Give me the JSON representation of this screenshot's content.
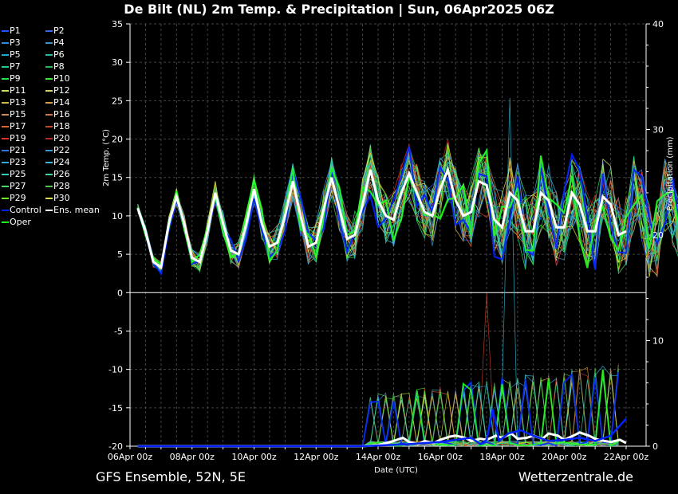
{
  "title": "De Bilt  (NL)  2m Temp. & Precipitation | Sun, 06Apr2025 06Z",
  "footer_left": "GFS Ensemble, 52N, 5E",
  "footer_right": "Wetterzentrale.de",
  "chart_data": {
    "type": "line",
    "title": "De Bilt  (NL)  2m Temp. & Precipitation | Sun, 06Apr2025 06Z",
    "xlabel": "Date (UTC)",
    "ylabel": "2m Temp. (°C)",
    "y2label": "Precipitation (mm)",
    "ylim": [
      -20,
      35
    ],
    "y2lim": [
      0,
      40
    ],
    "xlim_days": [
      0,
      16
    ],
    "yticks": [
      "35",
      "30",
      "25",
      "20",
      "15",
      "10",
      "5",
      "0",
      "-5",
      "-10",
      "-15",
      "-20"
    ],
    "y2ticks": [
      "40",
      "30",
      "20",
      "10",
      "0"
    ],
    "xticks": [
      "06Apr 00z",
      "08Apr 00z",
      "10Apr 00z",
      "12Apr 00z",
      "14Apr 00z",
      "16Apr 00z",
      "18Apr 00z",
      "20Apr 00z",
      "22Apr 00z"
    ],
    "grid": true,
    "legend_position": "left",
    "legend": [
      {
        "name": "P1",
        "color": "#2255ff"
      },
      {
        "name": "P2",
        "color": "#3366ff"
      },
      {
        "name": "P3",
        "color": "#3388dd"
      },
      {
        "name": "P4",
        "color": "#3399cc"
      },
      {
        "name": "P5",
        "color": "#22aacc"
      },
      {
        "name": "P6",
        "color": "#22bbaa"
      },
      {
        "name": "P7",
        "color": "#22cc99"
      },
      {
        "name": "P8",
        "color": "#22bb55"
      },
      {
        "name": "P9",
        "color": "#22dd55"
      },
      {
        "name": "P10",
        "color": "#33ee33"
      },
      {
        "name": "P11",
        "color": "#ccdd66"
      },
      {
        "name": "P12",
        "color": "#ddcc55"
      },
      {
        "name": "P13",
        "color": "#ccbb44"
      },
      {
        "name": "P14",
        "color": "#dd9944"
      },
      {
        "name": "P15",
        "color": "#cc8855"
      },
      {
        "name": "P16",
        "color": "#cc7744"
      },
      {
        "name": "P17",
        "color": "#dd6633"
      },
      {
        "name": "P18",
        "color": "#cc4422"
      },
      {
        "name": "P19",
        "color": "#dd3322"
      },
      {
        "name": "P20",
        "color": "#bb2222"
      },
      {
        "name": "P21",
        "color": "#3377dd"
      },
      {
        "name": "P22",
        "color": "#3399dd"
      },
      {
        "name": "P23",
        "color": "#33aadd"
      },
      {
        "name": "P24",
        "color": "#33bbdd"
      },
      {
        "name": "P25",
        "color": "#33ccbb"
      },
      {
        "name": "P26",
        "color": "#33dd99"
      },
      {
        "name": "P27",
        "color": "#44dd66"
      },
      {
        "name": "P28",
        "color": "#44cc44"
      },
      {
        "name": "P29",
        "color": "#66ee22"
      },
      {
        "name": "P30",
        "color": "#dddd33"
      },
      {
        "name": "Control",
        "color": "#0022ff"
      },
      {
        "name": "Ens. mean",
        "color": "#ffffff"
      },
      {
        "name": "Oper",
        "color": "#22ff22"
      }
    ],
    "temp_mean": [
      [
        0.25,
        11
      ],
      [
        0.5,
        8
      ],
      [
        0.75,
        4
      ],
      [
        1.0,
        3.3
      ],
      [
        1.25,
        9
      ],
      [
        1.5,
        12.5
      ],
      [
        1.75,
        9
      ],
      [
        2.0,
        4.5
      ],
      [
        2.25,
        4
      ],
      [
        2.5,
        8
      ],
      [
        2.75,
        13
      ],
      [
        3.0,
        9
      ],
      [
        3.25,
        5.5
      ],
      [
        3.5,
        5
      ],
      [
        3.75,
        9
      ],
      [
        4.0,
        13.5
      ],
      [
        4.25,
        9
      ],
      [
        4.5,
        6
      ],
      [
        4.75,
        6.5
      ],
      [
        5.0,
        10
      ],
      [
        5.25,
        14.5
      ],
      [
        5.5,
        10
      ],
      [
        5.75,
        6
      ],
      [
        6.0,
        6.5
      ],
      [
        6.25,
        11
      ],
      [
        6.5,
        15
      ],
      [
        6.75,
        11
      ],
      [
        7.0,
        7
      ],
      [
        7.25,
        7.5
      ],
      [
        7.5,
        11.5
      ],
      [
        7.75,
        16
      ],
      [
        8.0,
        12
      ],
      [
        8.25,
        10
      ],
      [
        8.5,
        9.5
      ],
      [
        8.75,
        13
      ],
      [
        9.0,
        15.5
      ],
      [
        9.25,
        13
      ],
      [
        9.5,
        10.5
      ],
      [
        9.75,
        10
      ],
      [
        10.0,
        13.5
      ],
      [
        10.25,
        16
      ],
      [
        10.5,
        12
      ],
      [
        10.75,
        10
      ],
      [
        11.0,
        10.5
      ],
      [
        11.25,
        14.5
      ],
      [
        11.5,
        14
      ],
      [
        11.75,
        9.5
      ],
      [
        12.0,
        8.5
      ],
      [
        12.25,
        13
      ],
      [
        12.5,
        12
      ],
      [
        12.75,
        8
      ],
      [
        13.0,
        8
      ],
      [
        13.25,
        13
      ],
      [
        13.5,
        12
      ],
      [
        13.75,
        8.5
      ],
      [
        14.0,
        8.5
      ],
      [
        14.25,
        13
      ],
      [
        14.5,
        11.5
      ],
      [
        14.75,
        8
      ],
      [
        15.0,
        8
      ],
      [
        15.25,
        12.5
      ],
      [
        15.5,
        11.5
      ],
      [
        15.75,
        7.5
      ],
      [
        16.0,
        8
      ],
      [
        16.25,
        13
      ],
      [
        16.5,
        11
      ],
      [
        16.75,
        7
      ],
      [
        17.0,
        7
      ],
      [
        17.25,
        12.5
      ],
      [
        17.5,
        11
      ],
      [
        17.75,
        7.5
      ]
    ],
    "precip_mean": [
      [
        0.25,
        0
      ],
      [
        7.5,
        0
      ],
      [
        8.0,
        0.1
      ],
      [
        8.5,
        0.5
      ],
      [
        8.8,
        0.8
      ],
      [
        9.0,
        0.4
      ],
      [
        9.3,
        0.2
      ],
      [
        9.5,
        0.5
      ],
      [
        9.8,
        0.3
      ],
      [
        10.0,
        0.6
      ],
      [
        10.3,
        0.9
      ],
      [
        10.5,
        1.0
      ],
      [
        10.8,
        0.8
      ],
      [
        11.0,
        0.5
      ],
      [
        11.3,
        0.7
      ],
      [
        11.5,
        0.6
      ],
      [
        11.8,
        1.0
      ],
      [
        12.0,
        0.8
      ],
      [
        12.3,
        1.2
      ],
      [
        12.5,
        0.7
      ],
      [
        12.8,
        0.8
      ],
      [
        13.0,
        1.0
      ],
      [
        13.3,
        0.7
      ],
      [
        13.5,
        1.2
      ],
      [
        13.8,
        1.0
      ],
      [
        14.0,
        0.6
      ],
      [
        14.3,
        1.0
      ],
      [
        14.5,
        1.3
      ],
      [
        14.8,
        1.0
      ],
      [
        15.0,
        0.7
      ],
      [
        15.3,
        0.5
      ],
      [
        15.5,
        0.4
      ],
      [
        15.8,
        0.6
      ],
      [
        16.0,
        0.3
      ],
      [
        16.3,
        0.5
      ],
      [
        16.5,
        0.7
      ],
      [
        16.8,
        0.5
      ],
      [
        17.0,
        0.3
      ],
      [
        17.3,
        0.5
      ],
      [
        17.5,
        0.4
      ],
      [
        17.8,
        0.2
      ]
    ],
    "precip_control": [
      [
        0.25,
        0
      ],
      [
        7.5,
        0
      ],
      [
        9.0,
        0.2
      ],
      [
        10.0,
        0.4
      ],
      [
        11.0,
        0.8
      ],
      [
        11.3,
        0.2
      ],
      [
        11.5,
        0.6
      ],
      [
        11.7,
        3.5
      ],
      [
        11.9,
        0.5
      ],
      [
        12.2,
        1.2
      ],
      [
        12.6,
        1.5
      ],
      [
        13.0,
        1.0
      ],
      [
        13.5,
        0.5
      ],
      [
        14.0,
        0.6
      ],
      [
        14.5,
        0.8
      ],
      [
        15.0,
        0.5
      ],
      [
        15.5,
        1.0
      ],
      [
        16.0,
        2.6
      ],
      [
        16.3,
        1.0
      ],
      [
        16.6,
        0.4
      ],
      [
        17.0,
        0.3
      ],
      [
        17.5,
        0.4
      ],
      [
        17.8,
        0.2
      ]
    ]
  }
}
